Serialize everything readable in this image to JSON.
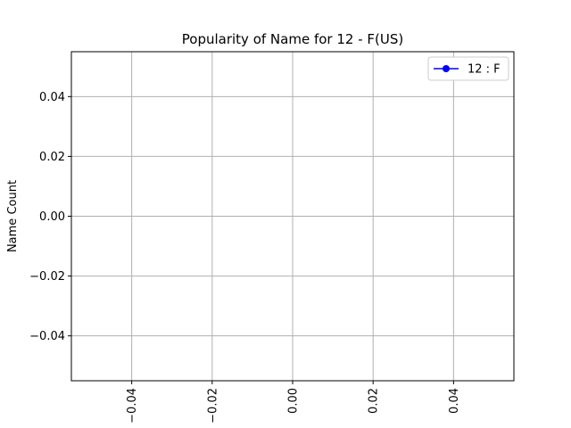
{
  "chart_data": {
    "type": "line",
    "title": "Popularity of Name for 12 - F(US)",
    "xlabel": "",
    "ylabel": "Name Count",
    "xlim": [
      -0.055,
      0.055
    ],
    "ylim": [
      -0.055,
      0.055
    ],
    "x_ticks": [
      -0.04,
      -0.02,
      0.0,
      0.02,
      0.04
    ],
    "x_tick_labels": [
      "−0.04",
      "−0.02",
      "0.00",
      "0.02",
      "0.04"
    ],
    "y_ticks": [
      -0.04,
      -0.02,
      0.0,
      0.02,
      0.04
    ],
    "y_tick_labels": [
      "−0.04",
      "−0.02",
      "0.00",
      "0.02",
      "0.04"
    ],
    "x_tick_rotation": "vertical",
    "grid": true,
    "legend": {
      "position": "top-right"
    },
    "series": [
      {
        "name": "12 : F",
        "color": "#0000ff",
        "marker": "circle",
        "x": [],
        "y": []
      }
    ]
  }
}
